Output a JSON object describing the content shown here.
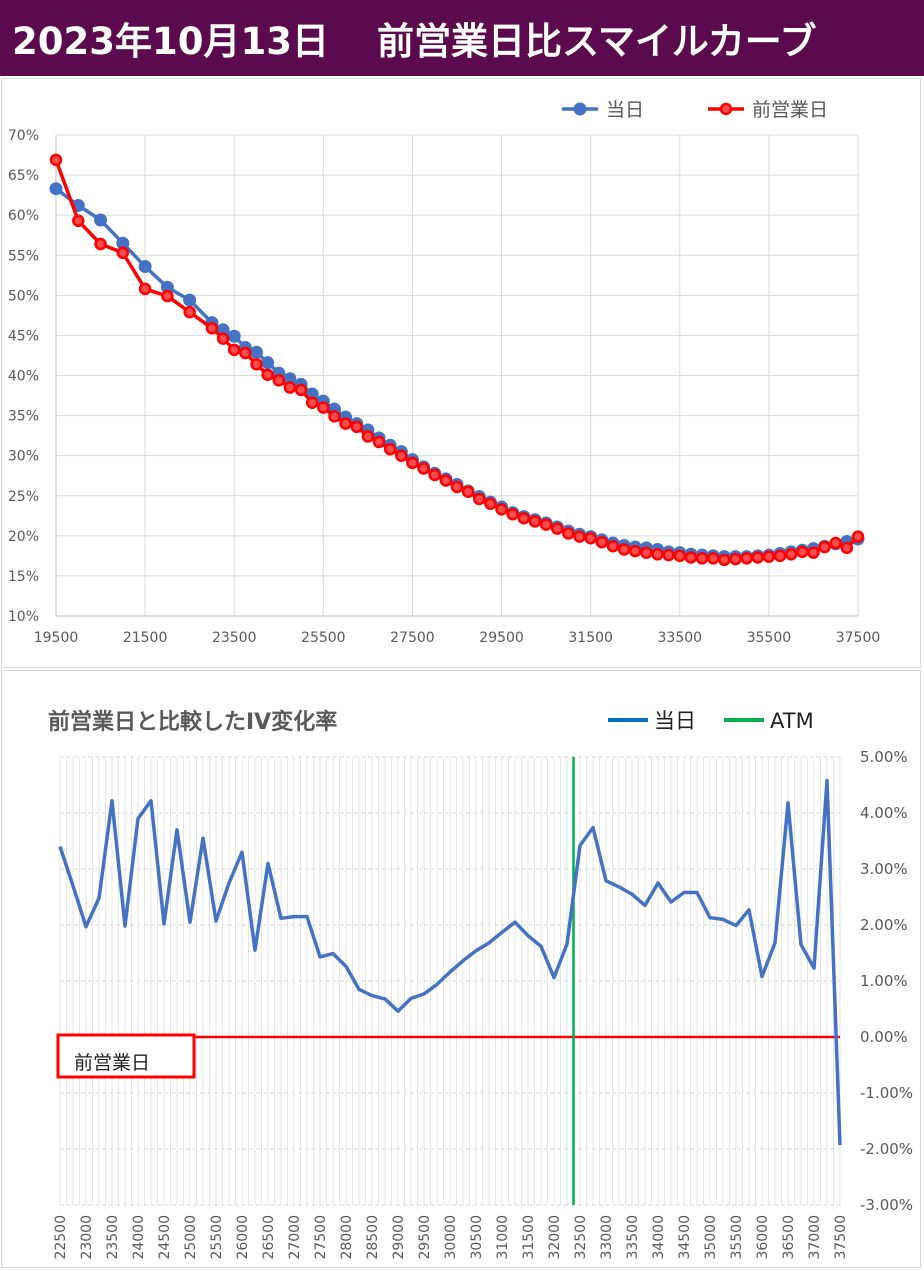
{
  "header": {
    "date_label": "2023年10月13日",
    "title": "前営業日比スマイルカーブ",
    "background": "#5c0a4e"
  },
  "chart_data": [
    {
      "type": "line",
      "title": "",
      "xlabel": "",
      "ylabel": "",
      "xlim": [
        19500,
        37500
      ],
      "ylim": [
        0.1,
        0.7
      ],
      "x_ticks": [
        19500,
        21500,
        23500,
        25500,
        27500,
        29500,
        31500,
        33500,
        35500,
        37500
      ],
      "y_ticks": [
        "70%",
        "65%",
        "60%",
        "55%",
        "50%",
        "45%",
        "40%",
        "35%",
        "30%",
        "25%",
        "20%",
        "15%",
        "10%"
      ],
      "grid": true,
      "legend_position": "top-right",
      "series": [
        {
          "name": "当日",
          "color": "#4472c4",
          "points": [
            [
              19500,
              0.633
            ],
            [
              20000,
              0.612
            ],
            [
              20500,
              0.594
            ],
            [
              21000,
              0.565
            ],
            [
              21500,
              0.536
            ],
            [
              22000,
              0.51
            ],
            [
              22500,
              0.494
            ],
            [
              23000,
              0.466
            ],
            [
              23250,
              0.457
            ],
            [
              23500,
              0.449
            ],
            [
              23750,
              0.435
            ],
            [
              24000,
              0.429
            ],
            [
              24250,
              0.416
            ],
            [
              24500,
              0.403
            ],
            [
              24750,
              0.396
            ],
            [
              25000,
              0.389
            ],
            [
              25250,
              0.377
            ],
            [
              25500,
              0.368
            ],
            [
              25750,
              0.358
            ],
            [
              26000,
              0.348
            ],
            [
              26250,
              0.34
            ],
            [
              26500,
              0.332
            ],
            [
              26750,
              0.322
            ],
            [
              27000,
              0.313
            ],
            [
              27250,
              0.305
            ],
            [
              27500,
              0.295
            ],
            [
              27750,
              0.286
            ],
            [
              28000,
              0.278
            ],
            [
              28250,
              0.271
            ],
            [
              28500,
              0.264
            ],
            [
              28750,
              0.256
            ],
            [
              29000,
              0.249
            ],
            [
              29250,
              0.242
            ],
            [
              29500,
              0.236
            ],
            [
              29750,
              0.229
            ],
            [
              30000,
              0.224
            ],
            [
              30250,
              0.22
            ],
            [
              30500,
              0.216
            ],
            [
              30750,
              0.211
            ],
            [
              31000,
              0.206
            ],
            [
              31250,
              0.202
            ],
            [
              31500,
              0.199
            ],
            [
              31750,
              0.195
            ],
            [
              32000,
              0.191
            ],
            [
              32250,
              0.188
            ],
            [
              32500,
              0.186
            ],
            [
              32750,
              0.185
            ],
            [
              33000,
              0.183
            ],
            [
              33250,
              0.18
            ],
            [
              33500,
              0.179
            ],
            [
              33750,
              0.177
            ],
            [
              34000,
              0.176
            ],
            [
              34250,
              0.175
            ],
            [
              34500,
              0.174
            ],
            [
              34750,
              0.174
            ],
            [
              35000,
              0.174
            ],
            [
              35250,
              0.175
            ],
            [
              35500,
              0.176
            ],
            [
              35750,
              0.178
            ],
            [
              36000,
              0.18
            ],
            [
              36250,
              0.182
            ],
            [
              36500,
              0.184
            ],
            [
              36750,
              0.187
            ],
            [
              37000,
              0.19
            ],
            [
              37250,
              0.193
            ],
            [
              37500,
              0.196
            ]
          ]
        },
        {
          "name": "前営業日",
          "color": "#ff0000",
          "points": [
            [
              19500,
              0.669
            ],
            [
              20000,
              0.593
            ],
            [
              20500,
              0.564
            ],
            [
              21000,
              0.553
            ],
            [
              21500,
              0.508
            ],
            [
              22000,
              0.499
            ],
            [
              22500,
              0.479
            ],
            [
              23000,
              0.459
            ],
            [
              23250,
              0.446
            ],
            [
              23500,
              0.432
            ],
            [
              23750,
              0.428
            ],
            [
              24000,
              0.414
            ],
            [
              24250,
              0.401
            ],
            [
              24500,
              0.394
            ],
            [
              24750,
              0.385
            ],
            [
              25000,
              0.382
            ],
            [
              25250,
              0.366
            ],
            [
              25500,
              0.36
            ],
            [
              25750,
              0.349
            ],
            [
              26000,
              0.34
            ],
            [
              26250,
              0.336
            ],
            [
              26500,
              0.324
            ],
            [
              26750,
              0.317
            ],
            [
              27000,
              0.308
            ],
            [
              27250,
              0.3
            ],
            [
              27500,
              0.291
            ],
            [
              27750,
              0.284
            ],
            [
              28000,
              0.276
            ],
            [
              28250,
              0.269
            ],
            [
              28500,
              0.261
            ],
            [
              28750,
              0.255
            ],
            [
              29000,
              0.246
            ],
            [
              29250,
              0.24
            ],
            [
              29500,
              0.233
            ],
            [
              29750,
              0.227
            ],
            [
              30000,
              0.222
            ],
            [
              30250,
              0.218
            ],
            [
              30500,
              0.214
            ],
            [
              30750,
              0.209
            ],
            [
              31000,
              0.203
            ],
            [
              31250,
              0.199
            ],
            [
              31500,
              0.197
            ],
            [
              31750,
              0.192
            ],
            [
              32000,
              0.187
            ],
            [
              32250,
              0.183
            ],
            [
              32500,
              0.181
            ],
            [
              32750,
              0.179
            ],
            [
              33000,
              0.177
            ],
            [
              33250,
              0.176
            ],
            [
              33500,
              0.175
            ],
            [
              33750,
              0.173
            ],
            [
              34000,
              0.172
            ],
            [
              34250,
              0.172
            ],
            [
              34500,
              0.17
            ],
            [
              34750,
              0.171
            ],
            [
              35000,
              0.172
            ],
            [
              35250,
              0.173
            ],
            [
              35500,
              0.174
            ],
            [
              35750,
              0.175
            ],
            [
              36000,
              0.177
            ],
            [
              36250,
              0.18
            ],
            [
              36500,
              0.179
            ],
            [
              36750,
              0.186
            ],
            [
              37000,
              0.191
            ],
            [
              37250,
              0.185
            ],
            [
              37500,
              0.199
            ]
          ]
        }
      ]
    },
    {
      "type": "line",
      "title": "前営業日と比較したIV変化率",
      "xlabel": "",
      "ylabel": "",
      "xlim": [
        22500,
        37500
      ],
      "ylim": [
        -0.03,
        0.05
      ],
      "x_ticks": [
        22500,
        23000,
        23500,
        24000,
        24500,
        25000,
        25500,
        26000,
        26500,
        27000,
        27500,
        28000,
        28500,
        29000,
        29500,
        30000,
        30500,
        31000,
        31500,
        32000,
        32500,
        33000,
        33500,
        34000,
        34500,
        35000,
        35500,
        36000,
        36500,
        37000,
        37500
      ],
      "y_ticks": [
        "5.00%",
        "4.00%",
        "3.00%",
        "2.00%",
        "1.00%",
        "0.00%",
        "-1.00%",
        "-2.00%",
        "-3.00%"
      ],
      "grid": true,
      "legend_position": "top-right",
      "atm_strike": 32375,
      "baseline_label": "前営業日",
      "series": [
        {
          "name": "当日",
          "color": "#4472c4",
          "points": [
            [
              22500,
              0.034
            ],
            [
              22750,
              0.027
            ],
            [
              23000,
              0.0197
            ],
            [
              23250,
              0.0248
            ],
            [
              23500,
              0.0422
            ],
            [
              23750,
              0.0198
            ],
            [
              24000,
              0.039
            ],
            [
              24250,
              0.0422
            ],
            [
              24500,
              0.0202
            ],
            [
              24750,
              0.037
            ],
            [
              25000,
              0.0205
            ],
            [
              25250,
              0.0355
            ],
            [
              25500,
              0.0207
            ],
            [
              25750,
              0.0275
            ],
            [
              26000,
              0.033
            ],
            [
              26250,
              0.0155
            ],
            [
              26500,
              0.031
            ],
            [
              26750,
              0.0212
            ],
            [
              27000,
              0.0215
            ],
            [
              27250,
              0.0215
            ],
            [
              27500,
              0.0143
            ],
            [
              27750,
              0.0149
            ],
            [
              28000,
              0.0126
            ],
            [
              28250,
              0.0085
            ],
            [
              28500,
              0.0074
            ],
            [
              28750,
              0.0068
            ],
            [
              29000,
              0.0046
            ],
            [
              29250,
              0.0069
            ],
            [
              29500,
              0.0077
            ],
            [
              29750,
              0.0094
            ],
            [
              30000,
              0.0116
            ],
            [
              30250,
              0.0136
            ],
            [
              30500,
              0.0154
            ],
            [
              30750,
              0.0168
            ],
            [
              31000,
              0.0187
            ],
            [
              31250,
              0.0205
            ],
            [
              31500,
              0.0181
            ],
            [
              31750,
              0.0162
            ],
            [
              32000,
              0.0106
            ],
            [
              32250,
              0.0166
            ],
            [
              32500,
              0.0342
            ],
            [
              32750,
              0.0374
            ],
            [
              33000,
              0.0279
            ],
            [
              33250,
              0.0268
            ],
            [
              33500,
              0.0255
            ],
            [
              33750,
              0.0235
            ],
            [
              34000,
              0.0275
            ],
            [
              34250,
              0.0241
            ],
            [
              34500,
              0.0258
            ],
            [
              34750,
              0.0258
            ],
            [
              35000,
              0.0213
            ],
            [
              35250,
              0.021
            ],
            [
              35500,
              0.0199
            ],
            [
              35750,
              0.0227
            ],
            [
              36000,
              0.0108
            ],
            [
              36250,
              0.0168
            ],
            [
              36500,
              0.0418
            ],
            [
              36750,
              0.0165
            ],
            [
              37000,
              0.0123
            ],
            [
              37250,
              0.0458
            ],
            [
              37500,
              -0.0193
            ]
          ]
        },
        {
          "name": "ATM",
          "color": "#00b050"
        }
      ]
    }
  ]
}
